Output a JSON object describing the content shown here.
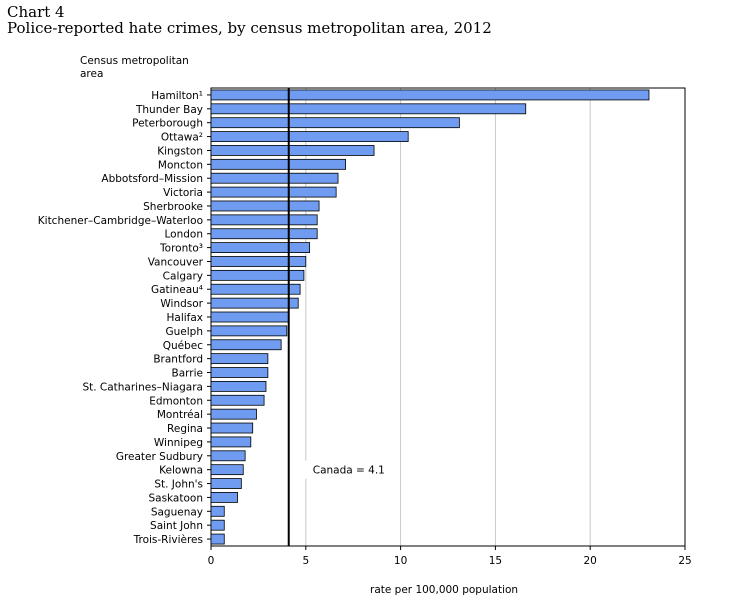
{
  "chart_number": "Chart 4",
  "title": "Police-reported hate crimes, by census metropolitan area, 2012",
  "chart_data": {
    "type": "bar",
    "orientation": "horizontal",
    "title": "Police-reported hate crimes, by census metropolitan area, 2012",
    "ylabel": "Census metropolitan area",
    "xlabel": "rate per 100,000 population",
    "xlim": [
      0,
      25
    ],
    "xticks": [
      "0",
      "5",
      "10",
      "15",
      "20",
      "25"
    ],
    "grid": "vertical",
    "bar_color": "#6f9cf0",
    "categories": [
      "Hamilton¹",
      "Thunder Bay",
      "Peterborough",
      "Ottawa²",
      "Kingston",
      "Moncton",
      "Abbotsford–Mission",
      "Victoria",
      "Sherbrooke",
      "Kitchener–Cambridge–Waterloo",
      "London",
      "Toronto³",
      "Vancouver",
      "Calgary",
      "Gatineau⁴",
      "Windsor",
      "Halifax",
      "Guelph",
      "Québec",
      "Brantford",
      "Barrie",
      "St. Catharines–Niagara",
      "Edmonton",
      "Montréal",
      "Regina",
      "Winnipeg",
      "Greater Sudbury",
      "Kelowna",
      "St. John's",
      "Saskatoon",
      "Saguenay",
      "Saint John",
      "Trois-Rivières"
    ],
    "values": [
      23.1,
      16.6,
      13.1,
      10.4,
      8.6,
      7.1,
      6.7,
      6.6,
      5.7,
      5.6,
      5.6,
      5.2,
      5.0,
      4.9,
      4.7,
      4.6,
      4.1,
      4.0,
      3.7,
      3.0,
      3.0,
      2.9,
      2.8,
      2.4,
      2.2,
      2.1,
      1.8,
      1.7,
      1.6,
      1.4,
      0.7,
      0.7,
      0.7
    ],
    "reference_line": {
      "value": 4.1,
      "label": "Canada = 4.1"
    }
  }
}
